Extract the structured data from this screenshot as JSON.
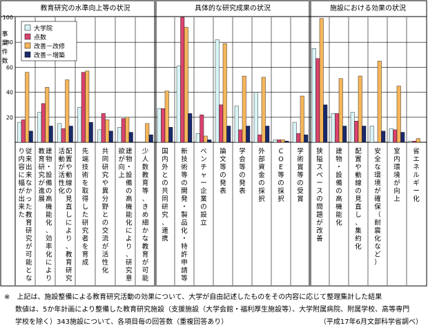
{
  "chart_data": {
    "type": "bar",
    "ylabel": "事業件数",
    "ylim": [
      0,
      100
    ],
    "yticks": [
      20,
      40,
      60,
      80,
      100
    ],
    "groups": [
      {
        "title": "教育研究の水準向上等の状況",
        "start": 0,
        "count": 7
      },
      {
        "title": "具体的な研究成果の状況",
        "start": 7,
        "count": 8
      },
      {
        "title": "施設における効果の状況",
        "start": 15,
        "count": 6
      }
    ],
    "categories": [
      "従来出来なかった教育研究が可能となり内容に幅が出来た",
      "建物・設備の高機能化、効率化により教育研究が進展",
      "配置や動線の見直しにより、教育研究活動が活性化",
      "先端技術を取得した研究者を育成",
      "共同研究や異分野との交流が活性化",
      "建物・設備の高機能化により、研究意欲が向上",
      "少人数教育等、きめ細かな教育が可能",
      "国内外との共同研究、連携",
      "新技術等の開発・製品化・特許申請等",
      "ベンチャー企業の設立",
      "論文等の発表",
      "学会等の発表",
      "外部資金の採択",
      "COE等の採択",
      "学術賞等の受賞",
      "狭隘スペースの問題が改善",
      "建物・設備の高機能化",
      "配置や動線の見直し、集約化",
      "安全な環境が確保（耐震化など）",
      "室内環境が向上",
      "省エネルギー化"
    ],
    "series": [
      {
        "name": "大学院",
        "color": "#d8f4f6",
        "values": [
          16,
          24,
          15,
          28,
          10,
          12,
          0,
          27,
          61,
          7,
          82,
          29,
          40,
          2,
          16,
          75,
          23,
          24,
          13,
          11,
          1
        ]
      },
      {
        "name": "点数",
        "color": "#d9446e",
        "values": [
          18,
          31,
          11,
          56,
          23,
          19,
          0,
          27,
          102,
          22,
          30,
          10,
          6,
          2,
          7,
          67,
          23,
          17,
          0,
          10,
          1
        ]
      },
      {
        "name": "改善－改修",
        "color": "#f6b65c",
        "values": [
          56,
          44,
          50,
          57,
          18,
          20,
          15,
          41,
          92,
          5,
          79,
          53,
          52,
          2,
          37,
          99,
          51,
          53,
          65,
          45,
          3
        ]
      },
      {
        "name": "改善－増築",
        "color": "#1a2a6b",
        "values": [
          9,
          13,
          13,
          16,
          9,
          8,
          6,
          12,
          23,
          2,
          13,
          13,
          13,
          1,
          6,
          30,
          13,
          13,
          9,
          8,
          0
        ]
      }
    ]
  },
  "notes": [
    "※　上記は、施設整備による教育研究活動の効果について、大学が自由記述したものをその内容に応じて整理集計した結果",
    "数値は、5か年計画により整備した教育研究施設（支援施設（大学会館・福利厚生施設等）、大学附属病院、附属学校、高等専門",
    "学校を除く）343施設について、各項目毎の回答数（重複回答あり）"
  ],
  "source": "（平成17年6月文部科学省調べ）"
}
